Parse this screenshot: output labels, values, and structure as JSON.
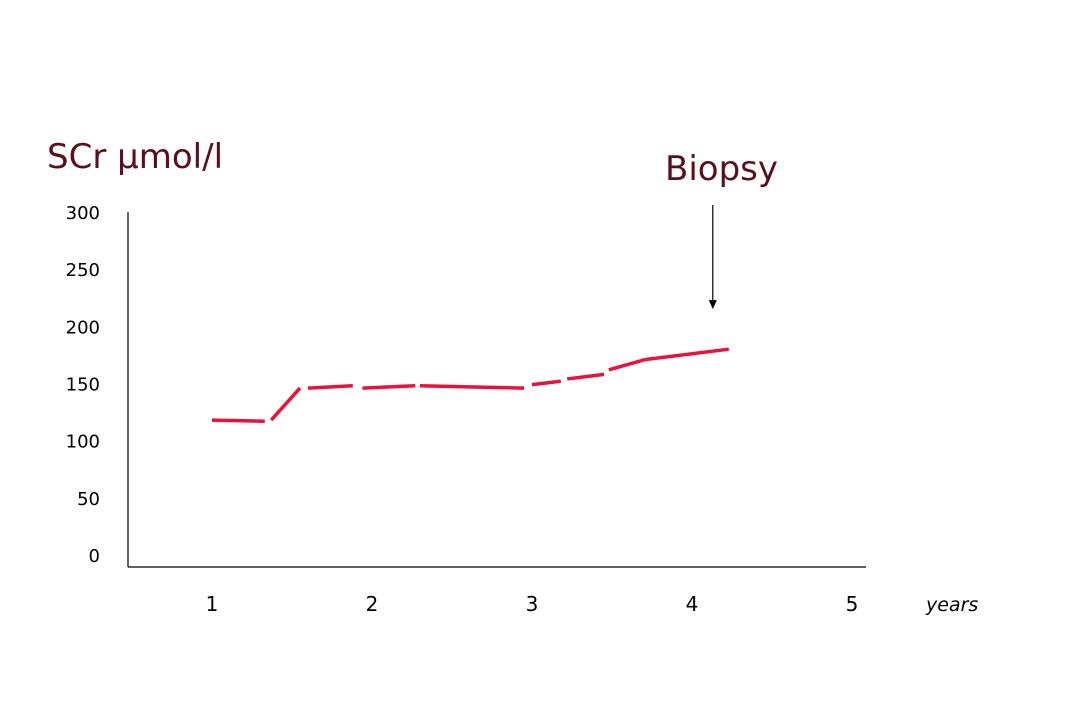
{
  "chart_data": {
    "type": "line",
    "title": "",
    "ylabel": "SCr µmol/l",
    "xlabel": "years",
    "xlim": [
      0.6,
      5.1
    ],
    "ylim": [
      0,
      300
    ],
    "x_ticks": [
      1,
      2,
      3,
      4,
      5
    ],
    "y_ticks": [
      0,
      50,
      100,
      150,
      200,
      250,
      300
    ],
    "grid": false,
    "legend": "none",
    "series": [
      {
        "color": "#e8123c",
        "segments": [
          [
            [
              1.0,
              118
            ],
            [
              1.33,
              117
            ]
          ],
          [
            [
              1.37,
              118
            ],
            [
              1.55,
              146
            ]
          ],
          [
            [
              1.6,
              146
            ],
            [
              1.88,
              148
            ]
          ],
          [
            [
              1.94,
              146
            ],
            [
              2.27,
              148
            ]
          ],
          [
            [
              2.3,
              148
            ],
            [
              2.6,
              147
            ]
          ],
          [
            [
              2.6,
              147
            ],
            [
              2.95,
              146
            ]
          ],
          [
            [
              3.0,
              149
            ],
            [
              3.18,
              152
            ]
          ],
          [
            [
              3.22,
              154
            ],
            [
              3.45,
              158
            ]
          ],
          [
            [
              3.48,
              162
            ],
            [
              3.71,
              171
            ]
          ],
          [
            [
              3.71,
              171
            ],
            [
              4.23,
              180
            ]
          ]
        ]
      }
    ],
    "annotations": [
      {
        "text": "Biopsy",
        "arrow_x": 4.13,
        "arrow_y": 215
      }
    ]
  }
}
